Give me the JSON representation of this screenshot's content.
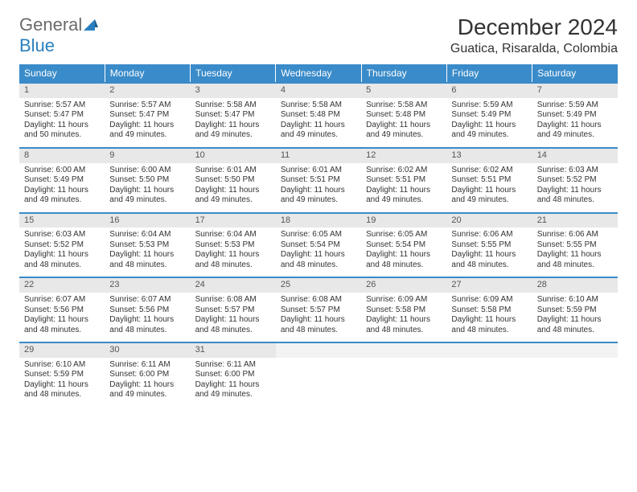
{
  "logo": {
    "main": "General",
    "sub": "Blue"
  },
  "title": "December 2024",
  "location": "Guatica, Risaralda, Colombia",
  "colors": {
    "header_bg": "#3a8bc9",
    "row_border": "#3a8bc9",
    "daynum_bg": "#e8e8e8",
    "text": "#333333",
    "logo_gray": "#6b6b6b",
    "logo_blue": "#2a7fbf"
  },
  "day_names": [
    "Sunday",
    "Monday",
    "Tuesday",
    "Wednesday",
    "Thursday",
    "Friday",
    "Saturday"
  ],
  "weeks": [
    [
      {
        "n": "1",
        "sr": "Sunrise: 5:57 AM",
        "ss": "Sunset: 5:47 PM",
        "d1": "Daylight: 11 hours",
        "d2": "and 50 minutes."
      },
      {
        "n": "2",
        "sr": "Sunrise: 5:57 AM",
        "ss": "Sunset: 5:47 PM",
        "d1": "Daylight: 11 hours",
        "d2": "and 49 minutes."
      },
      {
        "n": "3",
        "sr": "Sunrise: 5:58 AM",
        "ss": "Sunset: 5:47 PM",
        "d1": "Daylight: 11 hours",
        "d2": "and 49 minutes."
      },
      {
        "n": "4",
        "sr": "Sunrise: 5:58 AM",
        "ss": "Sunset: 5:48 PM",
        "d1": "Daylight: 11 hours",
        "d2": "and 49 minutes."
      },
      {
        "n": "5",
        "sr": "Sunrise: 5:58 AM",
        "ss": "Sunset: 5:48 PM",
        "d1": "Daylight: 11 hours",
        "d2": "and 49 minutes."
      },
      {
        "n": "6",
        "sr": "Sunrise: 5:59 AM",
        "ss": "Sunset: 5:49 PM",
        "d1": "Daylight: 11 hours",
        "d2": "and 49 minutes."
      },
      {
        "n": "7",
        "sr": "Sunrise: 5:59 AM",
        "ss": "Sunset: 5:49 PM",
        "d1": "Daylight: 11 hours",
        "d2": "and 49 minutes."
      }
    ],
    [
      {
        "n": "8",
        "sr": "Sunrise: 6:00 AM",
        "ss": "Sunset: 5:49 PM",
        "d1": "Daylight: 11 hours",
        "d2": "and 49 minutes."
      },
      {
        "n": "9",
        "sr": "Sunrise: 6:00 AM",
        "ss": "Sunset: 5:50 PM",
        "d1": "Daylight: 11 hours",
        "d2": "and 49 minutes."
      },
      {
        "n": "10",
        "sr": "Sunrise: 6:01 AM",
        "ss": "Sunset: 5:50 PM",
        "d1": "Daylight: 11 hours",
        "d2": "and 49 minutes."
      },
      {
        "n": "11",
        "sr": "Sunrise: 6:01 AM",
        "ss": "Sunset: 5:51 PM",
        "d1": "Daylight: 11 hours",
        "d2": "and 49 minutes."
      },
      {
        "n": "12",
        "sr": "Sunrise: 6:02 AM",
        "ss": "Sunset: 5:51 PM",
        "d1": "Daylight: 11 hours",
        "d2": "and 49 minutes."
      },
      {
        "n": "13",
        "sr": "Sunrise: 6:02 AM",
        "ss": "Sunset: 5:51 PM",
        "d1": "Daylight: 11 hours",
        "d2": "and 49 minutes."
      },
      {
        "n": "14",
        "sr": "Sunrise: 6:03 AM",
        "ss": "Sunset: 5:52 PM",
        "d1": "Daylight: 11 hours",
        "d2": "and 48 minutes."
      }
    ],
    [
      {
        "n": "15",
        "sr": "Sunrise: 6:03 AM",
        "ss": "Sunset: 5:52 PM",
        "d1": "Daylight: 11 hours",
        "d2": "and 48 minutes."
      },
      {
        "n": "16",
        "sr": "Sunrise: 6:04 AM",
        "ss": "Sunset: 5:53 PM",
        "d1": "Daylight: 11 hours",
        "d2": "and 48 minutes."
      },
      {
        "n": "17",
        "sr": "Sunrise: 6:04 AM",
        "ss": "Sunset: 5:53 PM",
        "d1": "Daylight: 11 hours",
        "d2": "and 48 minutes."
      },
      {
        "n": "18",
        "sr": "Sunrise: 6:05 AM",
        "ss": "Sunset: 5:54 PM",
        "d1": "Daylight: 11 hours",
        "d2": "and 48 minutes."
      },
      {
        "n": "19",
        "sr": "Sunrise: 6:05 AM",
        "ss": "Sunset: 5:54 PM",
        "d1": "Daylight: 11 hours",
        "d2": "and 48 minutes."
      },
      {
        "n": "20",
        "sr": "Sunrise: 6:06 AM",
        "ss": "Sunset: 5:55 PM",
        "d1": "Daylight: 11 hours",
        "d2": "and 48 minutes."
      },
      {
        "n": "21",
        "sr": "Sunrise: 6:06 AM",
        "ss": "Sunset: 5:55 PM",
        "d1": "Daylight: 11 hours",
        "d2": "and 48 minutes."
      }
    ],
    [
      {
        "n": "22",
        "sr": "Sunrise: 6:07 AM",
        "ss": "Sunset: 5:56 PM",
        "d1": "Daylight: 11 hours",
        "d2": "and 48 minutes."
      },
      {
        "n": "23",
        "sr": "Sunrise: 6:07 AM",
        "ss": "Sunset: 5:56 PM",
        "d1": "Daylight: 11 hours",
        "d2": "and 48 minutes."
      },
      {
        "n": "24",
        "sr": "Sunrise: 6:08 AM",
        "ss": "Sunset: 5:57 PM",
        "d1": "Daylight: 11 hours",
        "d2": "and 48 minutes."
      },
      {
        "n": "25",
        "sr": "Sunrise: 6:08 AM",
        "ss": "Sunset: 5:57 PM",
        "d1": "Daylight: 11 hours",
        "d2": "and 48 minutes."
      },
      {
        "n": "26",
        "sr": "Sunrise: 6:09 AM",
        "ss": "Sunset: 5:58 PM",
        "d1": "Daylight: 11 hours",
        "d2": "and 48 minutes."
      },
      {
        "n": "27",
        "sr": "Sunrise: 6:09 AM",
        "ss": "Sunset: 5:58 PM",
        "d1": "Daylight: 11 hours",
        "d2": "and 48 minutes."
      },
      {
        "n": "28",
        "sr": "Sunrise: 6:10 AM",
        "ss": "Sunset: 5:59 PM",
        "d1": "Daylight: 11 hours",
        "d2": "and 48 minutes."
      }
    ],
    [
      {
        "n": "29",
        "sr": "Sunrise: 6:10 AM",
        "ss": "Sunset: 5:59 PM",
        "d1": "Daylight: 11 hours",
        "d2": "and 48 minutes."
      },
      {
        "n": "30",
        "sr": "Sunrise: 6:11 AM",
        "ss": "Sunset: 6:00 PM",
        "d1": "Daylight: 11 hours",
        "d2": "and 49 minutes."
      },
      {
        "n": "31",
        "sr": "Sunrise: 6:11 AM",
        "ss": "Sunset: 6:00 PM",
        "d1": "Daylight: 11 hours",
        "d2": "and 49 minutes."
      },
      {
        "n": "",
        "sr": "",
        "ss": "",
        "d1": "",
        "d2": "",
        "empty": true
      },
      {
        "n": "",
        "sr": "",
        "ss": "",
        "d1": "",
        "d2": "",
        "empty": true
      },
      {
        "n": "",
        "sr": "",
        "ss": "",
        "d1": "",
        "d2": "",
        "empty": true
      },
      {
        "n": "",
        "sr": "",
        "ss": "",
        "d1": "",
        "d2": "",
        "empty": true
      }
    ]
  ]
}
